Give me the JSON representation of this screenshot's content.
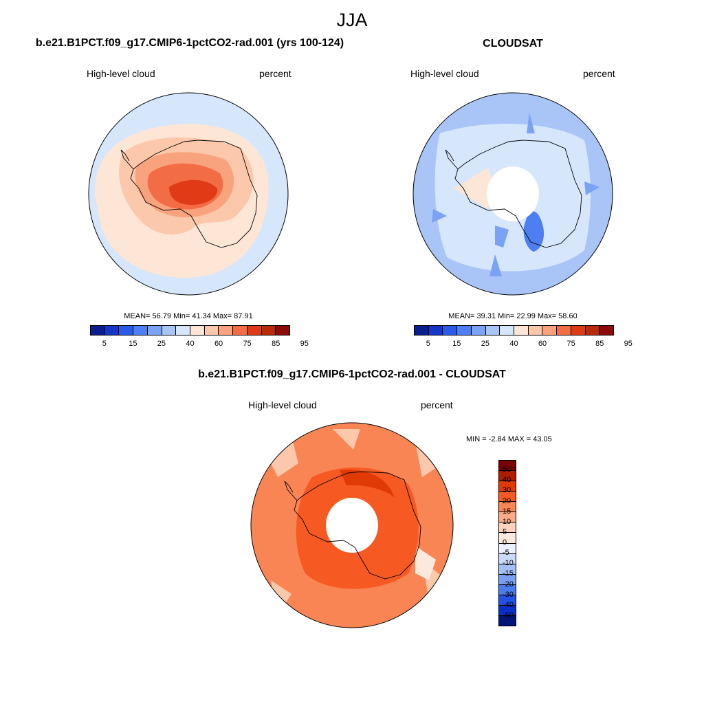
{
  "title": "JJA",
  "panels": [
    {
      "title": "b.e21.B1PCT.f09_g17.CMIP6-1pctCO2-rad.001 (yrs 100-124)",
      "variable": "High-level cloud",
      "units": "percent",
      "stats": "MEAN=  56.79  Min=  41.34  Max=  87.91"
    },
    {
      "title": "CLOUDSAT",
      "variable": "High-level cloud",
      "units": "percent",
      "stats": "MEAN=  39.31  Min=  22.99  Max=  58.60"
    },
    {
      "title": "b.e21.B1PCT.f09_g17.CMIP6-1pctCO2-rad.001 - CLOUDSAT",
      "variable": "High-level cloud",
      "units": "percent",
      "stats": "MIN =  -2.84 MAX =  43.05"
    }
  ],
  "colorbar_abs": {
    "labels": [
      "5",
      "15",
      "25",
      "40",
      "60",
      "75",
      "85",
      "95"
    ],
    "colors": [
      "#0a1f8f",
      "#1437c8",
      "#2a5be8",
      "#4d7ef2",
      "#7aa2f5",
      "#a9c5f7",
      "#d6e6fb",
      "#fde6d6",
      "#fcc8ac",
      "#f9a37e",
      "#f26d45",
      "#e03b17",
      "#b82a0c",
      "#8c0a0a"
    ]
  },
  "colorbar_diff": {
    "labels": [
      "50",
      "40",
      "30",
      "20",
      "15",
      "10",
      "5",
      "0",
      "-5",
      "-10",
      "-15",
      "-20",
      "-30",
      "-40",
      "-50"
    ],
    "colors": [
      "#7a0000",
      "#b01c00",
      "#e03a06",
      "#f65a22",
      "#f98555",
      "#fbab86",
      "#fdd3bd",
      "#fde8dc",
      "#eaf1fc",
      "#c8dbf8",
      "#a2c0f5",
      "#789ff2",
      "#4d7cee",
      "#2452e6",
      "#0b30c8",
      "#00157a"
    ]
  }
}
